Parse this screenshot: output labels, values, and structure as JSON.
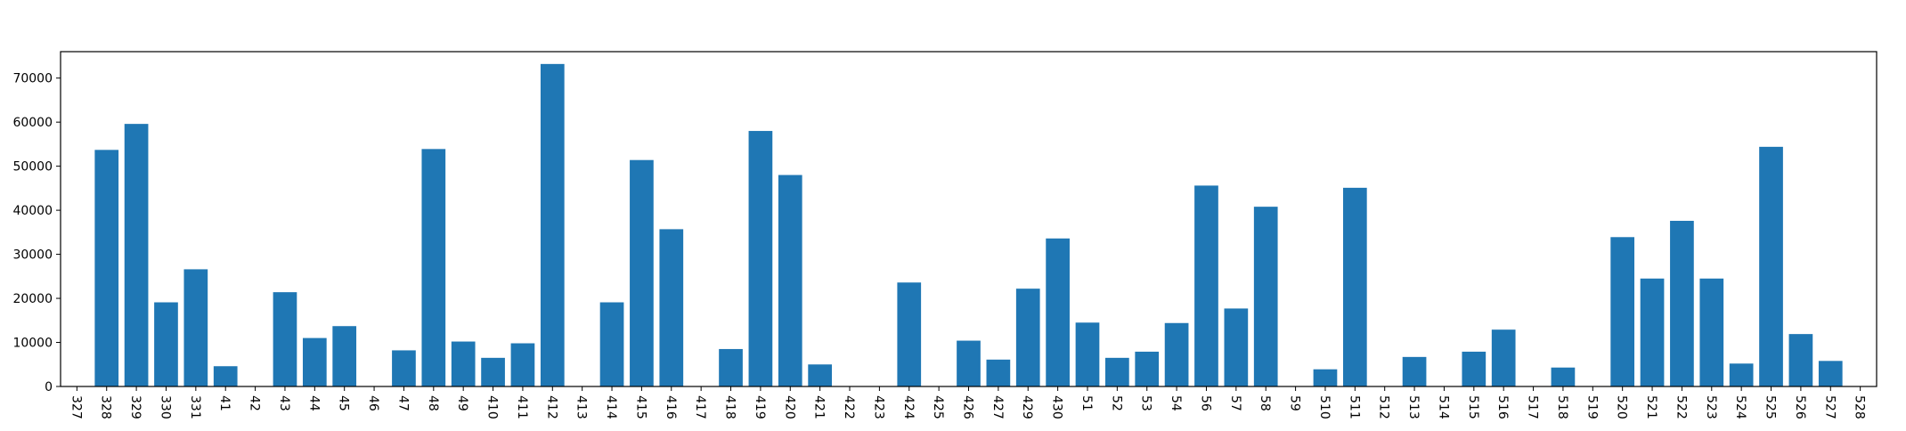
{
  "chart_data": {
    "type": "bar",
    "title": "",
    "xlabel": "",
    "ylabel": "",
    "ylim": [
      0,
      76000
    ],
    "yticks": [
      0,
      10000,
      20000,
      30000,
      40000,
      50000,
      60000,
      70000
    ],
    "bar_color": "#1f77b4",
    "grid": false,
    "categories": [
      "327",
      "328",
      "329",
      "330",
      "331",
      "41",
      "42",
      "43",
      "44",
      "45",
      "46",
      "47",
      "48",
      "49",
      "410",
      "411",
      "412",
      "413",
      "414",
      "415",
      "416",
      "417",
      "418",
      "419",
      "420",
      "421",
      "422",
      "423",
      "424",
      "425",
      "426",
      "427",
      "429",
      "430",
      "51",
      "52",
      "53",
      "54",
      "56",
      "57",
      "58",
      "59",
      "510",
      "511",
      "512",
      "513",
      "514",
      "515",
      "516",
      "517",
      "518",
      "519",
      "520",
      "521",
      "522",
      "523",
      "524",
      "525",
      "526",
      "527",
      "528"
    ],
    "values": [
      0,
      53700,
      59600,
      19100,
      26600,
      4600,
      0,
      21400,
      11000,
      13700,
      0,
      8200,
      53900,
      10200,
      6500,
      9800,
      73200,
      0,
      19100,
      51400,
      35700,
      0,
      8500,
      58000,
      48000,
      5000,
      0,
      0,
      23600,
      0,
      10400,
      6100,
      22200,
      33600,
      14500,
      6500,
      7900,
      14400,
      45600,
      17700,
      40800,
      0,
      3900,
      45100,
      0,
      6700,
      0,
      7900,
      12900,
      0,
      4300,
      0,
      33900,
      24500,
      37600,
      24500,
      5200,
      54400,
      11900,
      5800,
      0
    ]
  }
}
